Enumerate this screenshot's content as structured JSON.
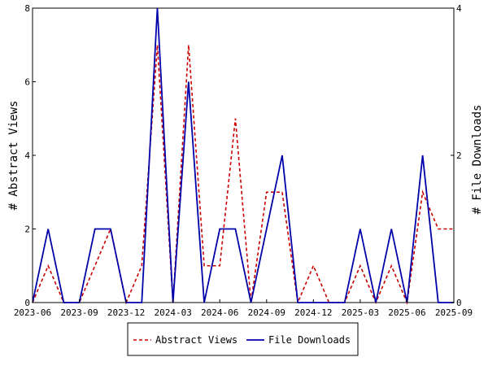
{
  "chart_data": {
    "type": "line",
    "x": [
      "2023-06",
      "2023-07",
      "2023-08",
      "2023-09",
      "2023-10",
      "2023-11",
      "2023-12",
      "2024-01",
      "2024-02",
      "2024-03",
      "2024-04",
      "2024-05",
      "2024-06",
      "2024-07",
      "2024-08",
      "2024-09",
      "2024-10",
      "2024-11",
      "2024-12",
      "2025-01",
      "2025-02",
      "2025-03",
      "2025-04",
      "2025-05",
      "2025-06",
      "2025-07",
      "2025-08",
      "2025-09"
    ],
    "x_ticks": [
      "2023-06",
      "2023-09",
      "2023-12",
      "2024-03",
      "2024-06",
      "2024-09",
      "2024-12",
      "2025-03",
      "2025-06",
      "2025-09"
    ],
    "y_left": {
      "label": "# Abstract Views",
      "lim": [
        0,
        8
      ],
      "ticks": [
        "0",
        "2",
        "4",
        "6",
        "8"
      ]
    },
    "y_right": {
      "label": "# File Downloads",
      "lim": [
        0,
        4
      ],
      "ticks": [
        "0",
        "2",
        "4"
      ]
    },
    "series": [
      {
        "name": "Abstract Views",
        "axis": "left",
        "color": "#cc0000",
        "dash": "dashed",
        "points": [
          [
            "2023-06",
            0
          ],
          [
            "2023-07",
            1
          ],
          [
            "2023-08",
            0
          ],
          [
            "2023-09",
            0
          ],
          [
            "2023-11",
            2
          ],
          [
            "2023-12",
            0
          ],
          [
            "2024-01",
            1
          ],
          [
            "2024-02",
            7
          ],
          [
            "2024-03",
            0
          ],
          [
            "2024-04",
            7
          ],
          [
            "2024-05",
            1
          ],
          [
            "2024-06",
            1
          ],
          [
            "2024-07",
            5
          ],
          [
            "2024-08",
            0
          ],
          [
            "2024-09",
            3
          ],
          [
            "2024-10",
            3
          ],
          [
            "2024-11",
            0
          ],
          [
            "2024-12",
            1
          ],
          [
            "2025-01",
            0
          ],
          [
            "2025-02",
            0
          ],
          [
            "2025-03",
            1
          ],
          [
            "2025-04",
            0
          ],
          [
            "2025-05",
            1
          ],
          [
            "2025-06",
            0
          ],
          [
            "2025-07",
            3
          ],
          [
            "2025-08",
            2
          ],
          [
            "2025-09",
            2
          ]
        ]
      },
      {
        "name": "File Downloads",
        "axis": "right",
        "color": "#0000aa",
        "dash": "solid",
        "points": [
          [
            "2023-06",
            0
          ],
          [
            "2023-07",
            1
          ],
          [
            "2023-08",
            0
          ],
          [
            "2023-09",
            0
          ],
          [
            "2023-10",
            1
          ],
          [
            "2023-11",
            1
          ],
          [
            "2023-12",
            0
          ],
          [
            "2024-01",
            0
          ],
          [
            "2024-02",
            4
          ],
          [
            "2024-03",
            0
          ],
          [
            "2024-04",
            3
          ],
          [
            "2024-05",
            0
          ],
          [
            "2024-06",
            1
          ],
          [
            "2024-07",
            1
          ],
          [
            "2024-08",
            0
          ],
          [
            "2024-09",
            1
          ],
          [
            "2024-10",
            2
          ],
          [
            "2024-11",
            0
          ],
          [
            "2024-12",
            0
          ],
          [
            "2025-01",
            0
          ],
          [
            "2025-02",
            0
          ],
          [
            "2025-03",
            1
          ],
          [
            "2025-04",
            0
          ],
          [
            "2025-05",
            1
          ],
          [
            "2025-06",
            0
          ],
          [
            "2025-07",
            2
          ],
          [
            "2025-08",
            0
          ],
          [
            "2025-09",
            0
          ]
        ]
      }
    ],
    "grid": false,
    "legend": {
      "placement": "bottom-center",
      "entries": [
        "Abstract Views",
        "File Downloads"
      ]
    }
  }
}
